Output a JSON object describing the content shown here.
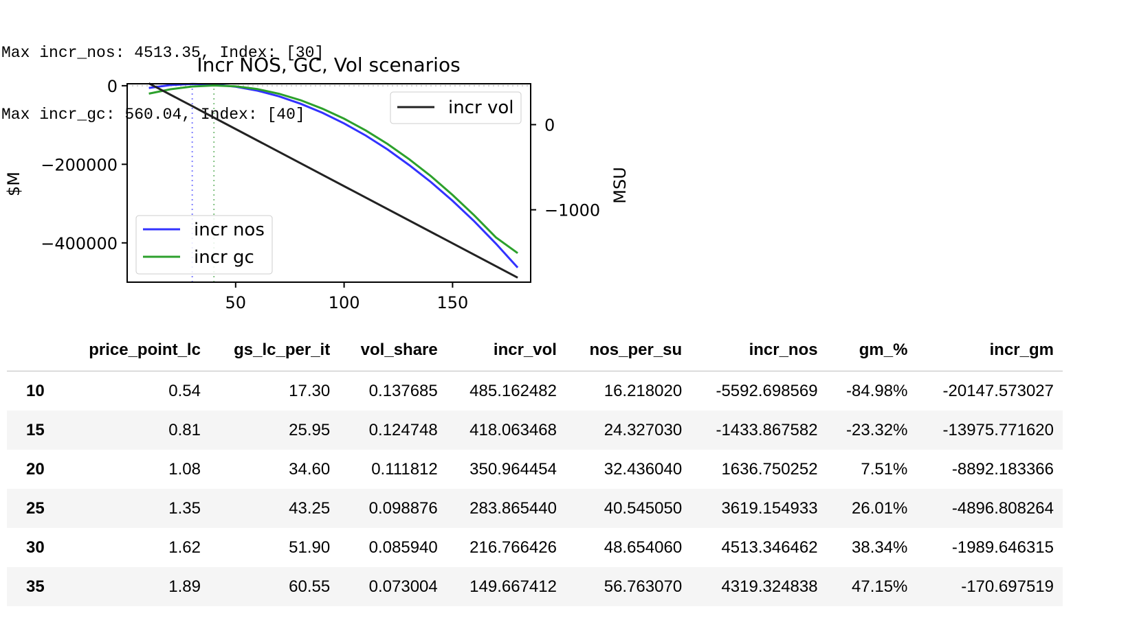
{
  "output_lines": [
    "Max incr_nos: 4513.35, Index: [30]",
    "Max incr_gc: 560.04, Index: [40]"
  ],
  "chart_data": {
    "type": "line",
    "title": "Incr NOS, GC, Vol scenarios",
    "xlabel": "",
    "ylabel": "$M",
    "y2label": "MSU",
    "xlim": [
      0,
      186
    ],
    "ylim": [
      -500000,
      5000
    ],
    "y2lim": [
      -1850,
      480
    ],
    "xticks": [
      50,
      100,
      150
    ],
    "yticks": [
      0,
      -200000,
      -400000
    ],
    "y2ticks": [
      0,
      -1000
    ],
    "xtick_labels": [
      "50",
      "100",
      "150"
    ],
    "ytick_labels": [
      "0",
      "−200000",
      "−400000"
    ],
    "y2tick_labels": [
      "0",
      "−1000"
    ],
    "legend_left": {
      "placement": "lower-left",
      "entries": [
        "incr nos",
        "incr gc"
      ]
    },
    "legend_right": {
      "placement": "upper-right",
      "entries": [
        "incr vol"
      ]
    },
    "vlines": [
      {
        "x": 30,
        "color": "#8080ff",
        "style": "dotted"
      },
      {
        "x": 40,
        "color": "#80c080",
        "style": "dotted"
      }
    ],
    "hline": {
      "y": 0,
      "axis": "left",
      "color": "#cccccc",
      "style": "dotted"
    },
    "series": [
      {
        "name": "incr nos",
        "axis": "left",
        "color": "#3232ff",
        "x": [
          10,
          20,
          30,
          40,
          50,
          60,
          70,
          80,
          90,
          100,
          110,
          120,
          130,
          140,
          150,
          160,
          170,
          180
        ],
        "y": [
          -5593,
          1637,
          4513,
          3000,
          -2500,
          -12500,
          -27000,
          -46000,
          -69000,
          -96000,
          -127000,
          -162000,
          -202000,
          -245000,
          -293000,
          -345000,
          -402000,
          -463000
        ]
      },
      {
        "name": "incr gc",
        "axis": "left",
        "color": "#2ca02c",
        "x": [
          10,
          20,
          30,
          40,
          50,
          60,
          70,
          80,
          90,
          100,
          110,
          120,
          130,
          140,
          150,
          160,
          170,
          180
        ],
        "y": [
          -20148,
          -8892,
          -1990,
          560,
          -1500,
          -8500,
          -20500,
          -37000,
          -58500,
          -84000,
          -114000,
          -148000,
          -187000,
          -230000,
          -278000,
          -330000,
          -386000,
          -426000
        ]
      },
      {
        "name": "incr vol",
        "axis": "right",
        "color": "#222222",
        "x": [
          10,
          15,
          20,
          25,
          30,
          35,
          180
        ],
        "y": [
          485.16,
          418.06,
          350.96,
          283.87,
          216.77,
          149.67,
          -1797
        ]
      }
    ]
  },
  "table": {
    "columns": [
      "",
      "price_point_lc",
      "gs_lc_per_it",
      "vol_share",
      "incr_vol",
      "nos_per_su",
      "incr_nos",
      "gm_%",
      "incr_gm"
    ],
    "rows": [
      [
        "10",
        "0.54",
        "17.30",
        "0.137685",
        "485.162482",
        "16.218020",
        "-5592.698569",
        "-84.98%",
        "-20147.573027"
      ],
      [
        "15",
        "0.81",
        "25.95",
        "0.124748",
        "418.063468",
        "24.327030",
        "-1433.867582",
        "-23.32%",
        "-13975.771620"
      ],
      [
        "20",
        "1.08",
        "34.60",
        "0.111812",
        "350.964454",
        "32.436040",
        "1636.750252",
        "7.51%",
        "-8892.183366"
      ],
      [
        "25",
        "1.35",
        "43.25",
        "0.098876",
        "283.865440",
        "40.545050",
        "3619.154933",
        "26.01%",
        "-4896.808264"
      ],
      [
        "30",
        "1.62",
        "51.90",
        "0.085940",
        "216.766426",
        "48.654060",
        "4513.346462",
        "38.34%",
        "-1989.646315"
      ],
      [
        "35",
        "1.89",
        "60.55",
        "0.073004",
        "149.667412",
        "56.763070",
        "4319.324838",
        "47.15%",
        "-170.697519"
      ]
    ]
  }
}
